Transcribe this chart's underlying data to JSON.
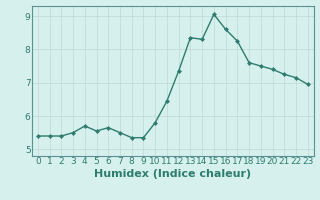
{
  "x": [
    0,
    1,
    2,
    3,
    4,
    5,
    6,
    7,
    8,
    9,
    10,
    11,
    12,
    13,
    14,
    15,
    16,
    17,
    18,
    19,
    20,
    21,
    22,
    23
  ],
  "y": [
    5.4,
    5.4,
    5.4,
    5.5,
    5.7,
    5.55,
    5.65,
    5.5,
    5.35,
    5.35,
    5.8,
    6.45,
    7.35,
    8.35,
    8.3,
    9.05,
    8.6,
    8.25,
    7.6,
    7.5,
    7.4,
    7.25,
    7.15,
    6.95
  ],
  "line_color": "#2e7d6e",
  "marker": "D",
  "marker_size": 2,
  "bg_color": "#d6f0ee",
  "grid_color": "#c0d8d4",
  "xlabel": "Humidex (Indice chaleur)",
  "xlim": [
    -0.5,
    23.5
  ],
  "ylim": [
    4.8,
    9.3
  ],
  "yticks": [
    5,
    6,
    7,
    8,
    9
  ],
  "xticks": [
    0,
    1,
    2,
    3,
    4,
    5,
    6,
    7,
    8,
    9,
    10,
    11,
    12,
    13,
    14,
    15,
    16,
    17,
    18,
    19,
    20,
    21,
    22,
    23
  ],
  "xtick_labels": [
    "0",
    "1",
    "2",
    "3",
    "4",
    "5",
    "6",
    "7",
    "8",
    "9",
    "10",
    "11",
    "12",
    "13",
    "14",
    "15",
    "16",
    "17",
    "18",
    "19",
    "20",
    "21",
    "22",
    "23"
  ],
  "tick_fontsize": 6.5,
  "xlabel_fontsize": 8,
  "spine_color": "#5a9090",
  "linewidth": 1.0
}
